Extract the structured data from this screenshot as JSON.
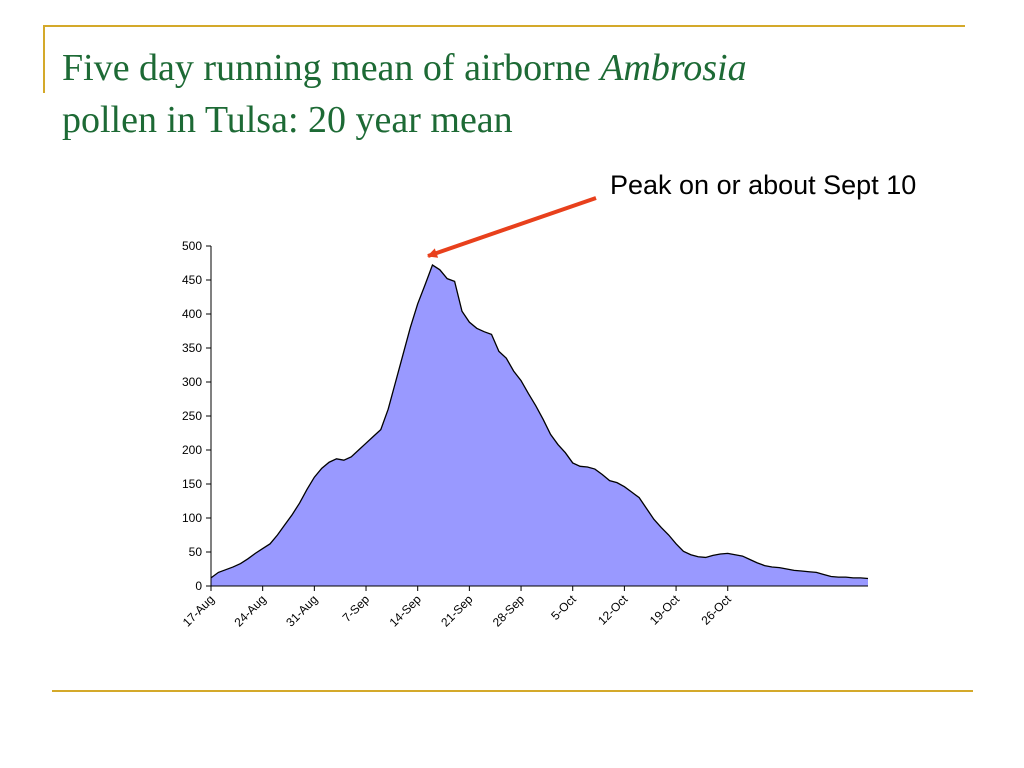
{
  "slide": {
    "title_line1": "Five day running mean of airborne",
    "title_italic": "Ambrosia",
    "title_line2": "pollen in Tulsa: 20 year mean",
    "accent_color": "#d4a92a",
    "title_color": "#1d6a35"
  },
  "chart_data": {
    "type": "area",
    "x_start": "2000-08-17",
    "x_step_days": 1,
    "values": [
      12,
      20,
      24,
      28,
      33,
      40,
      48,
      55,
      62,
      75,
      90,
      105,
      122,
      142,
      160,
      173,
      182,
      187,
      185,
      190,
      200,
      210,
      220,
      230,
      260,
      300,
      340,
      380,
      415,
      443,
      472,
      465,
      452,
      448,
      404,
      388,
      379,
      374,
      370,
      345,
      335,
      316,
      302,
      283,
      265,
      245,
      223,
      208,
      196,
      181,
      176,
      175,
      172,
      164,
      155,
      152,
      146,
      138,
      130,
      114,
      98,
      86,
      75,
      62,
      51,
      46,
      43,
      42,
      45,
      47,
      48,
      46,
      44,
      39,
      34,
      30,
      28,
      27,
      25,
      23,
      22,
      21,
      20,
      17,
      14,
      13,
      13,
      12,
      12,
      11
    ],
    "x_tick_labels": [
      "17-Aug",
      "24-Aug",
      "31-Aug",
      "7-Sep",
      "14-Sep",
      "21-Sep",
      "28-Sep",
      "5-Oct",
      "12-Oct",
      "19-Oct",
      "26-Oct"
    ],
    "x_tick_every_days": 7,
    "y_ticks": [
      0,
      50,
      100,
      150,
      200,
      250,
      300,
      350,
      400,
      450,
      500
    ],
    "ylim": [
      0,
      500
    ],
    "fill_color": "#9999ff",
    "line_color": "#000000",
    "grid": false,
    "annotation": {
      "text": "Peak on or about Sept 10",
      "arrow_color": "#e8401c"
    }
  }
}
